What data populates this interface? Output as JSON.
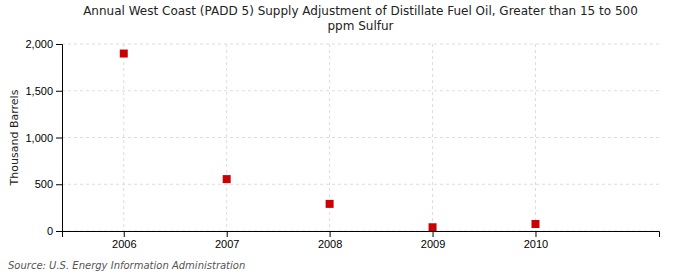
{
  "chart_data": {
    "type": "scatter",
    "title": "Annual West Coast (PADD 5) Supply Adjustment of Distillate Fuel Oil, Greater than 15 to 500\nppm Sulfur",
    "ylabel": "Thousand Barrels",
    "source": "Source: U.S. Energy Information Administration",
    "x": [
      2006,
      2007,
      2008,
      2009,
      2010
    ],
    "values": [
      1898,
      555,
      290,
      40,
      75
    ],
    "color": "#cc0000",
    "marker": "square",
    "xlim": [
      2005.4,
      2011.2
    ],
    "xticks": [
      2006,
      2007,
      2008,
      2009,
      2010
    ],
    "ylim": [
      0,
      2000
    ],
    "yticks": [
      0,
      500,
      {
        "value": 1000,
        "label": "1,000"
      },
      {
        "value": 1500,
        "label": "1,500"
      },
      {
        "value": 2000,
        "label": "2,000"
      }
    ],
    "grid": true
  }
}
